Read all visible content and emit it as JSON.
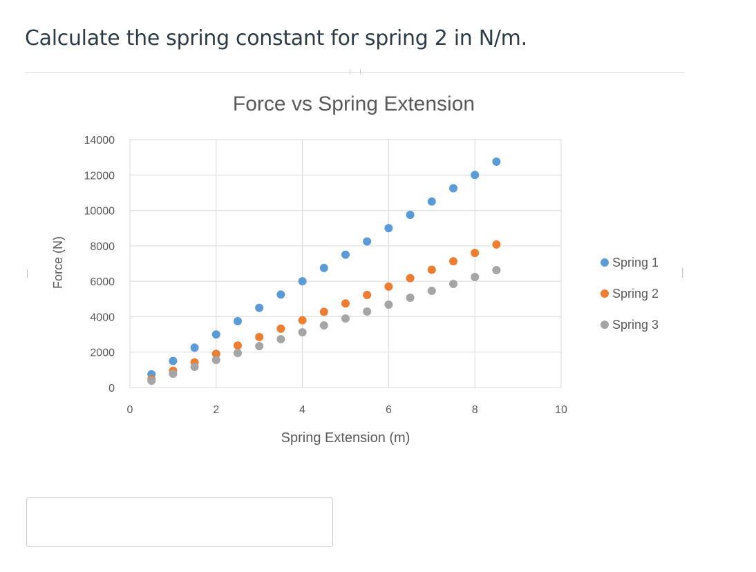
{
  "question": {
    "text": "Calculate the spring constant for spring 2 in N/m."
  },
  "answer_input": {
    "value": "",
    "placeholder": ""
  },
  "colors": {
    "spring1": "#5b9bd5",
    "spring2": "#ed7d31",
    "spring3": "#a5a5a5",
    "grid": "#d9d9d9",
    "axis_text": "#595959"
  },
  "chart_data": {
    "type": "scatter",
    "title": "Force vs Spring Extension",
    "xlabel": "Spring Extension (m)",
    "ylabel": "Force (N)",
    "xlim": [
      0,
      10
    ],
    "ylim": [
      0,
      14000
    ],
    "x_ticks": [
      0,
      2,
      4,
      6,
      8,
      10
    ],
    "y_ticks": [
      0,
      2000,
      4000,
      6000,
      8000,
      10000,
      12000,
      14000
    ],
    "grid": true,
    "legend_position": "right",
    "series": [
      {
        "name": "Spring 1",
        "color": "#5b9bd5",
        "x": [
          0.5,
          1,
          1.5,
          2,
          2.5,
          3,
          3.5,
          4,
          4.5,
          5,
          5.5,
          6,
          6.5,
          7,
          7.5,
          8,
          8.5
        ],
        "y": [
          750,
          1500,
          2250,
          3000,
          3750,
          4500,
          5250,
          6000,
          6750,
          7500,
          8250,
          9000,
          9750,
          10500,
          11250,
          12000,
          12750
        ]
      },
      {
        "name": "Spring 2",
        "color": "#ed7d31",
        "x": [
          0.5,
          1,
          1.5,
          2,
          2.5,
          3,
          3.5,
          4,
          4.5,
          5,
          5.5,
          6,
          6.5,
          7,
          7.5,
          8,
          8.5
        ],
        "y": [
          475,
          950,
          1425,
          1900,
          2375,
          2850,
          3325,
          3800,
          4275,
          4750,
          5225,
          5700,
          6175,
          6650,
          7125,
          7600,
          8075
        ]
      },
      {
        "name": "Spring 3",
        "color": "#a5a5a5",
        "x": [
          0.5,
          1,
          1.5,
          2,
          2.5,
          3,
          3.5,
          4,
          4.5,
          5,
          5.5,
          6,
          6.5,
          7,
          7.5,
          8,
          8.5
        ],
        "y": [
          390,
          780,
          1170,
          1560,
          1950,
          2340,
          2730,
          3120,
          3510,
          3900,
          4290,
          4680,
          5070,
          5460,
          5850,
          6240,
          6630
        ]
      }
    ]
  }
}
